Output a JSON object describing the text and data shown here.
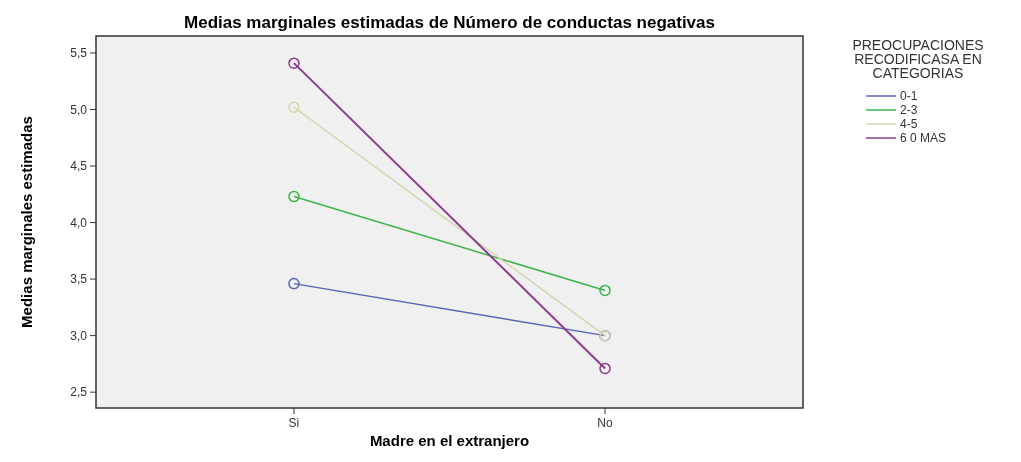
{
  "chart_data": {
    "type": "line",
    "title": "Medias marginales estimadas de Número de conductas negativas",
    "xlabel": "Madre en el extranjero",
    "ylabel": "Medias marginales estimadas",
    "legend_title": "PREOCUPACIONES RECODIFICASA EN CATEGORIAS",
    "categories": [
      "Si",
      "No"
    ],
    "series": [
      {
        "name": "0-1",
        "color": "#5a64b4",
        "values": [
          3.46,
          3.0
        ]
      },
      {
        "name": "2-3",
        "color": "#3cb44b",
        "values": [
          4.23,
          3.4
        ]
      },
      {
        "name": "4-5",
        "color": "#d8d4b0",
        "values": [
          5.02,
          3.0
        ]
      },
      {
        "name": "6 0 MAS",
        "color": "#8c3c8c",
        "values": [
          5.41,
          2.71
        ]
      }
    ],
    "ylim": [
      2.36,
      5.65
    ],
    "yticks": [
      {
        "value": 2.5,
        "label": "2,5"
      },
      {
        "value": 3.0,
        "label": "3,0"
      },
      {
        "value": 3.5,
        "label": "3,5"
      },
      {
        "value": 4.0,
        "label": "4,0"
      },
      {
        "value": 4.5,
        "label": "4,5"
      },
      {
        "value": 5.0,
        "label": "5,0"
      },
      {
        "value": 5.5,
        "label": "5,5"
      }
    ],
    "marker": "circle",
    "legend": "top right",
    "grid": false
  }
}
